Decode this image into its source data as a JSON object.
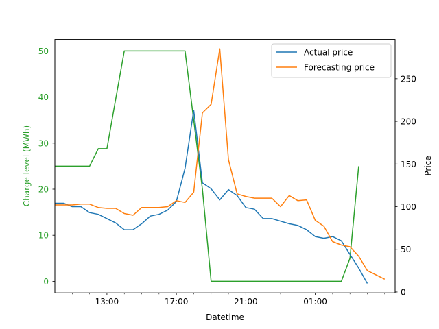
{
  "chart_data": {
    "type": "line",
    "xlabel": "Datetime",
    "ylabel_left": "Charge level (MWh)",
    "ylabel_right": "Price",
    "x_tick_labels": [
      "13:00",
      "17:00",
      "21:00",
      "01:00"
    ],
    "x_tick_hours": [
      13,
      17,
      21,
      25
    ],
    "x_start_hour": 10.0,
    "x_step_hours": 0.5,
    "y_left_ticks": [
      0,
      10,
      20,
      30,
      40,
      50
    ],
    "y_left_range": [
      -2.5,
      52.5
    ],
    "y_right_ticks": [
      0,
      50,
      100,
      150,
      200,
      250
    ],
    "y_right_range": [
      -1,
      296
    ],
    "grid": false,
    "legend_position": "top-right",
    "colors": {
      "charge": "#2ca02c",
      "actual": "#1f77b4",
      "forecast": "#ff7f0e"
    },
    "series": [
      {
        "key": "charge",
        "axis": "left",
        "values": [
          25,
          25,
          25,
          25,
          25,
          28.8,
          28.8,
          39.5,
          50,
          50,
          50,
          50,
          50,
          50,
          50,
          50,
          35,
          20,
          0,
          0,
          0,
          0,
          0,
          0,
          0,
          0,
          0,
          0,
          0,
          0,
          0,
          0,
          0,
          0,
          5,
          25
        ]
      },
      {
        "key": "actual",
        "name": "Actual price",
        "axis": "right",
        "values": [
          104,
          104,
          100,
          100,
          93,
          91,
          86,
          81,
          73,
          73,
          80,
          89,
          91,
          96,
          106,
          145,
          213,
          128,
          121,
          108,
          120,
          113,
          99,
          97,
          86,
          86,
          83,
          80,
          78,
          73,
          65,
          63,
          65,
          60,
          44,
          28,
          10
        ]
      },
      {
        "key": "forecast",
        "name": "Forecasting price",
        "axis": "right",
        "values": [
          102,
          102,
          102,
          103,
          103,
          99,
          98,
          98,
          92,
          90,
          99,
          99,
          99,
          100,
          107,
          105,
          117,
          210,
          220,
          285,
          155,
          115,
          112,
          110,
          110,
          110,
          100,
          113,
          107,
          108,
          84,
          77,
          59,
          55,
          53,
          42,
          25,
          20,
          15
        ]
      }
    ]
  }
}
